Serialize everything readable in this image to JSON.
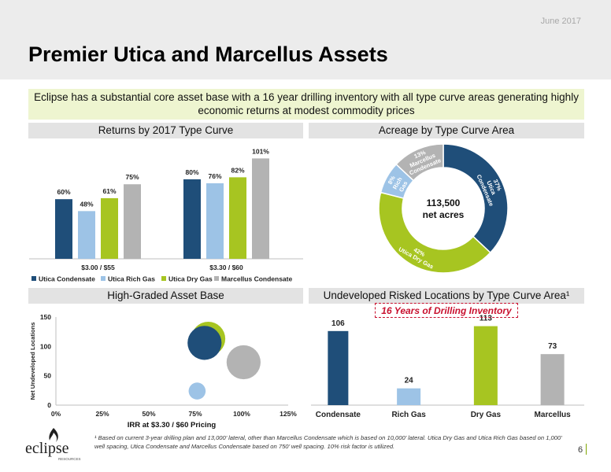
{
  "header": {
    "date": "June 2017",
    "title": "Premier Utica and Marcellus Assets"
  },
  "callout": "Eclipse has a substantial core asset base with a 16 year drilling inventory with all type curve areas generating highly economic returns at modest commodity prices",
  "colors": {
    "utica_condensate": "#1f4e79",
    "utica_rich_gas": "#9dc3e6",
    "utica_dry_gas": "#a7c521",
    "marcellus_condensate": "#b3b3b3",
    "accent_red": "#c8102e"
  },
  "panels": {
    "returns": "Returns by 2017 Type Curve",
    "acreage": "Acreage by Type Curve Area",
    "asset_base": "High-Graded Asset Base",
    "locations": "Undeveloped Risked Locations by Type Curve Area¹"
  },
  "drilling_inventory_label": "16 Years of Drilling Inventory",
  "footnote": "¹ Based on current 3-year drilling plan and 13,000’ lateral, other than Marcellus Condensate which is based on 10,000’ lateral. Utica Dry Gas and Utica Rich Gas based on 1,000’ well spacing, Utica Condensate and Marcellus Condensate based on 750’ well spacing. 10% risk factor is utilized.",
  "page_number": "6",
  "logo": {
    "name": "eclipse",
    "sub": "RESOURCES"
  },
  "chart_data": [
    {
      "type": "bar",
      "title": "Returns by 2017 Type Curve",
      "categories": [
        "$3.00 / $55",
        "$3.30 / $60"
      ],
      "series": [
        {
          "name": "Utica Condensate",
          "values": [
            60,
            80
          ],
          "labels": [
            "60%",
            "80%"
          ]
        },
        {
          "name": "Utica Rich Gas",
          "values": [
            48,
            76
          ],
          "labels": [
            "48%",
            "76%"
          ]
        },
        {
          "name": "Utica Dry Gas",
          "values": [
            61,
            82
          ],
          "labels": [
            "61%",
            "82%"
          ]
        },
        {
          "name": "Marcellus Condensate",
          "values": [
            75,
            101
          ],
          "labels": [
            "75%",
            "101%"
          ]
        }
      ],
      "ylim": [
        0,
        110
      ],
      "legend": "bottom"
    },
    {
      "type": "pie",
      "title": "Acreage by Type Curve Area",
      "center_label": [
        "113,500",
        "net acres"
      ],
      "slices": [
        {
          "name": "Utica Condensate",
          "value": 37,
          "label": [
            "37%",
            "Utica",
            "Condensate"
          ]
        },
        {
          "name": "Utica Dry Gas",
          "value": 42,
          "label": [
            "42%",
            "Utica Dry Gas"
          ]
        },
        {
          "name": "Rich Gas",
          "value": 8,
          "label": [
            "8%",
            "Rich",
            "Gas"
          ]
        },
        {
          "name": "Marcellus Condensate",
          "value": 13,
          "label": [
            "13%",
            "Marcellus",
            "Condensate"
          ]
        }
      ]
    },
    {
      "type": "scatter",
      "title": "High-Graded Asset Base",
      "xlabel": "IRR at $3.30 / $60 Pricing",
      "ylabel": "Net Undeveloped Locations",
      "xlim": [
        0,
        125
      ],
      "ylim": [
        0,
        150
      ],
      "xticks": [
        "0%",
        "25%",
        "50%",
        "75%",
        "100%",
        "125%"
      ],
      "yticks": [
        "0",
        "50",
        "100",
        "150"
      ],
      "points": [
        {
          "name": "Utica Dry Gas",
          "x": 82,
          "y": 113,
          "size": 3
        },
        {
          "name": "Utica Condensate",
          "x": 80,
          "y": 106,
          "size": 3
        },
        {
          "name": "Marcellus Condensate",
          "x": 101,
          "y": 73,
          "size": 3
        },
        {
          "name": "Utica Rich Gas",
          "x": 76,
          "y": 24,
          "size": 1.5
        }
      ]
    },
    {
      "type": "bar",
      "title": "Undeveloped Risked Locations by Type Curve Area¹",
      "categories": [
        "Condensate",
        "Rich Gas",
        "Dry Gas",
        "Marcellus"
      ],
      "values": [
        106,
        24,
        113,
        73
      ],
      "ylim": [
        0,
        130
      ]
    }
  ]
}
